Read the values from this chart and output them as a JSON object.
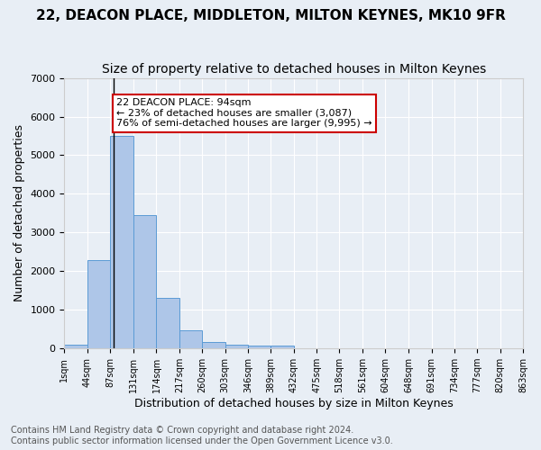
{
  "title": "22, DEACON PLACE, MIDDLETON, MILTON KEYNES, MK10 9FR",
  "subtitle": "Size of property relative to detached houses in Milton Keynes",
  "xlabel": "Distribution of detached houses by size in Milton Keynes",
  "ylabel": "Number of detached properties",
  "bin_edges": [
    1,
    44,
    87,
    131,
    174,
    217,
    260,
    303,
    346,
    389,
    432,
    475,
    518,
    561,
    604,
    648,
    691,
    734,
    777,
    820,
    863
  ],
  "bin_heights": [
    100,
    2280,
    5500,
    3450,
    1300,
    470,
    175,
    90,
    75,
    75,
    0,
    0,
    0,
    0,
    0,
    0,
    0,
    0,
    0,
    0
  ],
  "bar_color": "#aec6e8",
  "bar_edge_color": "#5b9bd5",
  "vline_x": 94,
  "vline_color": "#000000",
  "annotation_text": "22 DEACON PLACE: 94sqm\n← 23% of detached houses are smaller (3,087)\n76% of semi-detached houses are larger (9,995) →",
  "annotation_box_color": "#ffffff",
  "annotation_box_edge_color": "#cc0000",
  "ylim": [
    0,
    7000
  ],
  "background_color": "#e8eef5",
  "grid_color": "#ffffff",
  "tick_labels": [
    "1sqm",
    "44sqm",
    "87sqm",
    "131sqm",
    "174sqm",
    "217sqm",
    "260sqm",
    "303sqm",
    "346sqm",
    "389sqm",
    "432sqm",
    "475sqm",
    "518sqm",
    "561sqm",
    "604sqm",
    "648sqm",
    "691sqm",
    "734sqm",
    "777sqm",
    "820sqm",
    "863sqm"
  ],
  "footer_line1": "Contains HM Land Registry data © Crown copyright and database right 2024.",
  "footer_line2": "Contains public sector information licensed under the Open Government Licence v3.0.",
  "title_fontsize": 11,
  "subtitle_fontsize": 10,
  "xlabel_fontsize": 9,
  "ylabel_fontsize": 9,
  "tick_fontsize": 7,
  "annotation_fontsize": 8,
  "footer_fontsize": 7
}
